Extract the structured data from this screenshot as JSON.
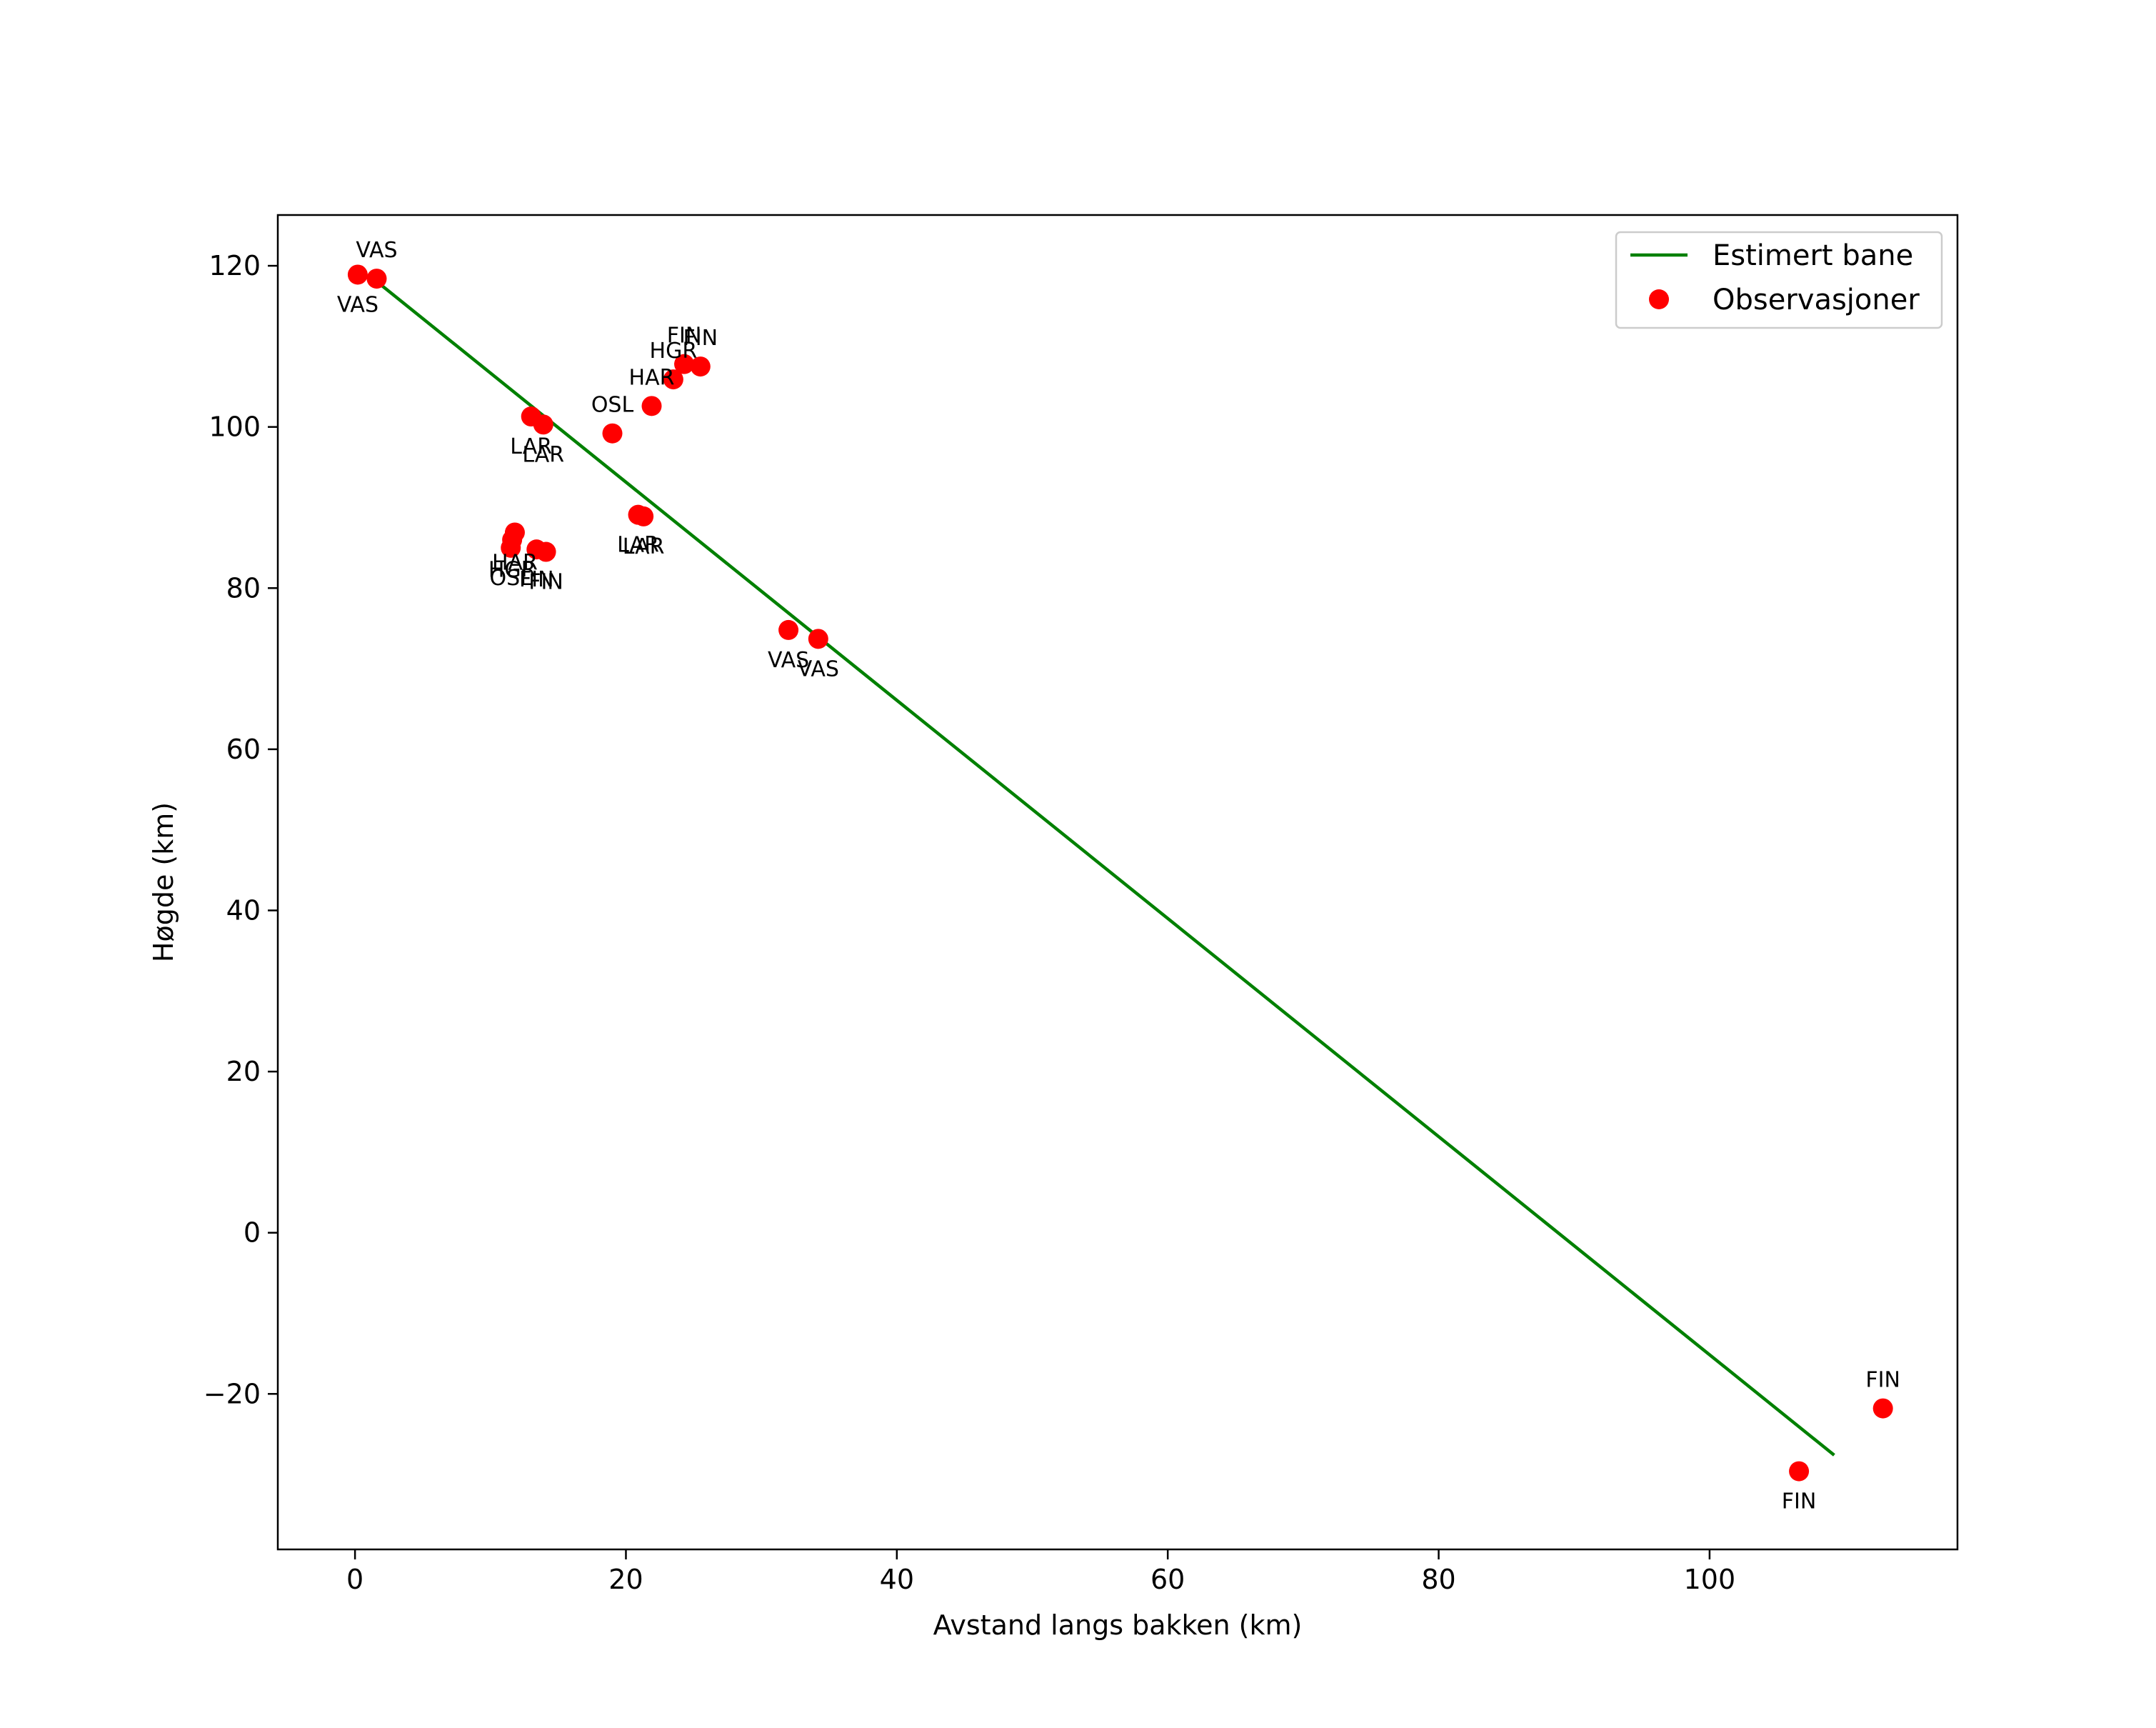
{
  "chart_data": {
    "type": "scatter",
    "title": "",
    "xlabel": "Avstand langs bakken (km)",
    "ylabel": "Høgde (km)",
    "xlim": [
      -5.7,
      118.3
    ],
    "ylim": [
      -39.3,
      126.3
    ],
    "grid": false,
    "xticks": [
      0,
      20,
      40,
      60,
      80,
      100
    ],
    "yticks": [
      -20,
      0,
      20,
      40,
      60,
      80,
      100,
      120
    ],
    "legend_position": "top-right",
    "legend": [
      {
        "label": "Estimert bane",
        "kind": "line",
        "color": "#008000"
      },
      {
        "label": "Observasjoner",
        "kind": "marker",
        "color": "#ff0000"
      }
    ],
    "series": [
      {
        "name": "Estimert bane",
        "kind": "line",
        "color": "#008000",
        "x": [
          1.2,
          109.2
        ],
        "y": [
          118.6,
          -27.6
        ]
      },
      {
        "name": "Observasjoner",
        "kind": "scatter",
        "color": "#ff0000",
        "points": [
          {
            "x": 0.2,
            "y": 118.9,
            "label": "VAS"
          },
          {
            "x": 1.6,
            "y": 118.4,
            "label": "VAS"
          },
          {
            "x": 13.0,
            "y": 101.3,
            "label": "LAR"
          },
          {
            "x": 13.9,
            "y": 100.3,
            "label": "LAR"
          },
          {
            "x": 19.0,
            "y": 99.2,
            "label": "OSL"
          },
          {
            "x": 21.9,
            "y": 102.6,
            "label": "HAR"
          },
          {
            "x": 23.5,
            "y": 105.9,
            "label": "HGR"
          },
          {
            "x": 24.3,
            "y": 107.8,
            "label": "FIN"
          },
          {
            "x": 25.5,
            "y": 107.5,
            "label": "FIN"
          },
          {
            "x": 11.8,
            "y": 86.9,
            "label": "HAR"
          },
          {
            "x": 11.6,
            "y": 86.0,
            "label": "HGR"
          },
          {
            "x": 11.5,
            "y": 85.0,
            "label": "OSL"
          },
          {
            "x": 13.4,
            "y": 84.8,
            "label": "FIN"
          },
          {
            "x": 14.1,
            "y": 84.5,
            "label": "FIN"
          },
          {
            "x": 20.9,
            "y": 89.1,
            "label": "LAR"
          },
          {
            "x": 21.3,
            "y": 88.9,
            "label": "LAR"
          },
          {
            "x": 32.0,
            "y": 74.8,
            "label": "VAS"
          },
          {
            "x": 34.2,
            "y": 73.7,
            "label": "VAS"
          },
          {
            "x": 106.6,
            "y": -29.6,
            "label": "FIN"
          },
          {
            "x": 112.8,
            "y": -21.8,
            "label": "FIN"
          }
        ]
      }
    ]
  }
}
